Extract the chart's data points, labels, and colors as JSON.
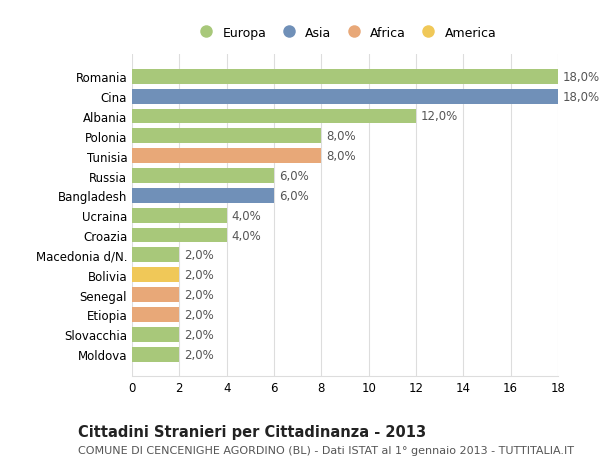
{
  "countries": [
    "Romania",
    "Cina",
    "Albania",
    "Polonia",
    "Tunisia",
    "Russia",
    "Bangladesh",
    "Ucraina",
    "Croazia",
    "Macedonia d/N.",
    "Bolivia",
    "Senegal",
    "Etiopia",
    "Slovacchia",
    "Moldova"
  ],
  "values": [
    18,
    18,
    12,
    8,
    8,
    6,
    6,
    4,
    4,
    2,
    2,
    2,
    2,
    2,
    2
  ],
  "labels": [
    "18,0%",
    "18,0%",
    "12,0%",
    "8,0%",
    "8,0%",
    "6,0%",
    "6,0%",
    "4,0%",
    "4,0%",
    "2,0%",
    "2,0%",
    "2,0%",
    "2,0%",
    "2,0%",
    "2,0%"
  ],
  "continents": [
    "Europa",
    "Asia",
    "Europa",
    "Europa",
    "Africa",
    "Europa",
    "Asia",
    "Europa",
    "Europa",
    "Europa",
    "America",
    "Africa",
    "Africa",
    "Europa",
    "Europa"
  ],
  "continent_colors": {
    "Europa": "#a8c87a",
    "Asia": "#7090b8",
    "Africa": "#e8a878",
    "America": "#f0c858"
  },
  "legend_order": [
    "Europa",
    "Asia",
    "Africa",
    "America"
  ],
  "title": "Cittadini Stranieri per Cittadinanza - 2013",
  "subtitle": "COMUNE DI CENCENIGHE AGORDINO (BL) - Dati ISTAT al 1° gennaio 2013 - TUTTITALIA.IT",
  "xlim": [
    0,
    18
  ],
  "xticks": [
    0,
    2,
    4,
    6,
    8,
    10,
    12,
    14,
    16,
    18
  ],
  "background_color": "#ffffff",
  "grid_color": "#dddddd",
  "bar_height": 0.75,
  "label_fontsize": 8.5,
  "title_fontsize": 10.5,
  "subtitle_fontsize": 8,
  "tick_fontsize": 8.5,
  "legend_fontsize": 9
}
